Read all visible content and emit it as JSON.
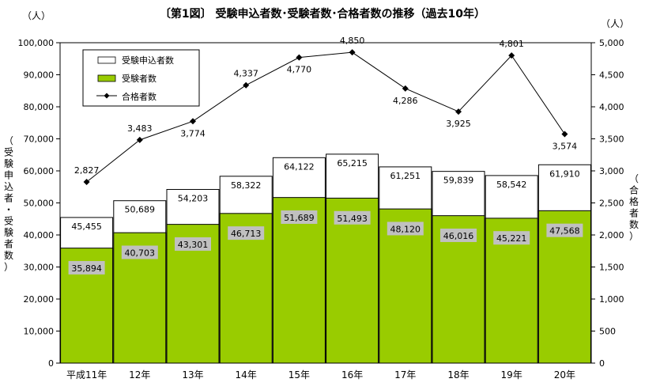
{
  "chart_data": {
    "type": "bar",
    "title": "〔第1図〕 受験申込者数･受験者数･合格者数の推移（過去10年）",
    "categories": [
      "平成11年",
      "12年",
      "13年",
      "14年",
      "15年",
      "16年",
      "17年",
      "18年",
      "19年",
      "20年"
    ],
    "series": [
      {
        "name": "受験申込者数",
        "type": "bar",
        "axis": "left",
        "color": "#ffffff",
        "values": [
          45455,
          50689,
          54203,
          58322,
          64122,
          65215,
          61251,
          59839,
          58542,
          61910
        ],
        "labels": [
          "45,455",
          "50,689",
          "54,203",
          "58,322",
          "64,122",
          "65,215",
          "61,251",
          "59,839",
          "58,542",
          "61,910"
        ]
      },
      {
        "name": "受験者数",
        "type": "bar",
        "axis": "left",
        "color": "#99cc00",
        "values": [
          35894,
          40703,
          43301,
          46713,
          51689,
          51493,
          48120,
          46016,
          45221,
          47568
        ],
        "labels": [
          "35,894",
          "40,703",
          "43,301",
          "46,713",
          "51,689",
          "51,493",
          "48,120",
          "46,016",
          "45,221",
          "47,568"
        ]
      },
      {
        "name": "合格者数",
        "type": "line",
        "axis": "right",
        "color": "#000000",
        "values": [
          2827,
          3483,
          3774,
          4337,
          4770,
          4850,
          4286,
          3925,
          4801,
          3574
        ],
        "labels": [
          "2,827",
          "3,483",
          "3,774",
          "4,337",
          "4,770",
          "4,850",
          "4,286",
          "3,925",
          "4,801",
          "3,574"
        ]
      }
    ],
    "y_left": {
      "unit": "（人）",
      "label": "（受験申込者・受験者数）",
      "ylim": [
        0,
        100000
      ],
      "ticks": [
        "0",
        "10,000",
        "20,000",
        "30,000",
        "40,000",
        "50,000",
        "60,000",
        "70,000",
        "80,000",
        "90,000",
        "100,000"
      ]
    },
    "y_right": {
      "unit": "（人）",
      "label": "（合格者数）",
      "ylim": [
        0,
        5000
      ],
      "ticks": [
        "0",
        "500",
        "1,000",
        "1,500",
        "2,000",
        "2,500",
        "3,000",
        "3,500",
        "4,000",
        "4,500",
        "5,000"
      ]
    },
    "grid": false,
    "legend": "top-left"
  }
}
